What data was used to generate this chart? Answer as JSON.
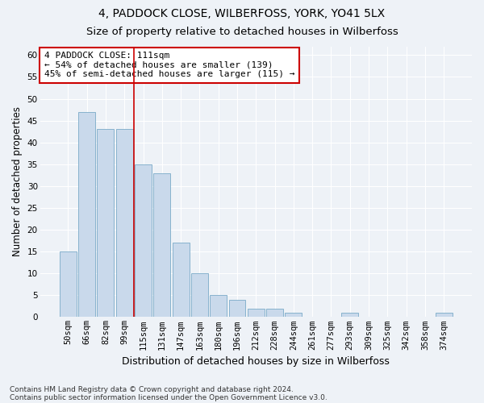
{
  "title": "4, PADDOCK CLOSE, WILBERFOSS, YORK, YO41 5LX",
  "subtitle": "Size of property relative to detached houses in Wilberfoss",
  "xlabel": "Distribution of detached houses by size in Wilberfoss",
  "ylabel": "Number of detached properties",
  "bar_labels": [
    "50sqm",
    "66sqm",
    "82sqm",
    "99sqm",
    "115sqm",
    "131sqm",
    "147sqm",
    "163sqm",
    "180sqm",
    "196sqm",
    "212sqm",
    "228sqm",
    "244sqm",
    "261sqm",
    "277sqm",
    "293sqm",
    "309sqm",
    "325sqm",
    "342sqm",
    "358sqm",
    "374sqm"
  ],
  "bar_values": [
    15,
    47,
    43,
    43,
    35,
    33,
    17,
    10,
    5,
    4,
    2,
    2,
    1,
    0,
    0,
    1,
    0,
    0,
    0,
    0,
    1
  ],
  "bar_color": "#c9d9eb",
  "bar_edge_color": "#7aaac8",
  "vline_index": 4,
  "vline_color": "#cc0000",
  "annotation_line1": "4 PADDOCK CLOSE: 111sqm",
  "annotation_line2": "← 54% of detached houses are smaller (139)",
  "annotation_line3": "45% of semi-detached houses are larger (115) →",
  "annotation_box_color": "#ffffff",
  "annotation_box_edge": "#cc0000",
  "ylim": [
    0,
    62
  ],
  "yticks": [
    0,
    5,
    10,
    15,
    20,
    25,
    30,
    35,
    40,
    45,
    50,
    55,
    60
  ],
  "footnote_line1": "Contains HM Land Registry data © Crown copyright and database right 2024.",
  "footnote_line2": "Contains public sector information licensed under the Open Government Licence v3.0.",
  "bg_color": "#eef2f7",
  "grid_color": "#ffffff",
  "title_fontsize": 10,
  "subtitle_fontsize": 9.5,
  "xlabel_fontsize": 9,
  "ylabel_fontsize": 8.5,
  "tick_fontsize": 7.5,
  "footnote_fontsize": 6.5
}
